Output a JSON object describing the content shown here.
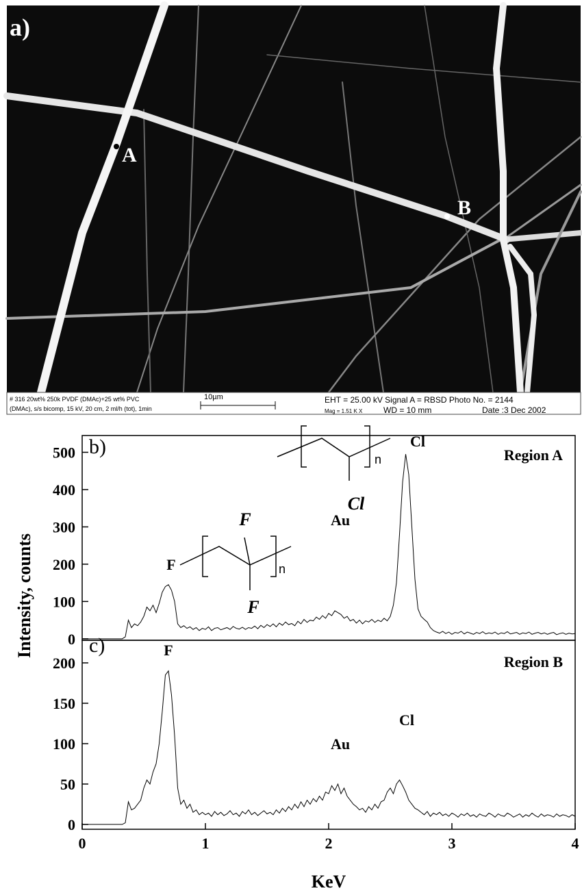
{
  "image": {
    "panel_label": "a)",
    "points": [
      "A",
      "B"
    ],
    "info": {
      "line1": "# 316 20wt% 250k PVDF (DMAc)+25 wt% PVC",
      "line2": "(DMAc), s/s bicomp, 15 kV, 20 cm, 2 ml/h (tot), 1min",
      "scale": "10µm",
      "eht": "EHT = 25.00 kV Signal A = RBSD Photo No. = 2144",
      "mag": "Mag =  1.51 K X",
      "wd": "WD =  10 mm",
      "date": "Date :3 Dec 2002"
    }
  },
  "chart_data": [
    {
      "type": "line",
      "ylabel": "Intensity, counts",
      "panel_label": "b)",
      "region_label": "Region A",
      "peak_labels": [
        "F",
        "Au",
        "Cl"
      ],
      "structure": {
        "substituents": [
          "Cl"
        ],
        "repeat": "n"
      },
      "color": "#000000",
      "xlim": [
        0,
        4
      ],
      "ylim": [
        -4,
        545
      ],
      "yticks": [
        0,
        100,
        200,
        300,
        400,
        500
      ],
      "x": [
        0,
        0.025,
        0.05,
        0.075,
        0.1,
        0.125,
        0.15,
        0.175,
        0.2,
        0.225,
        0.25,
        0.275,
        0.3,
        0.325,
        0.35,
        0.375,
        0.4,
        0.425,
        0.45,
        0.475,
        0.5,
        0.525,
        0.55,
        0.575,
        0.6,
        0.625,
        0.65,
        0.675,
        0.7,
        0.725,
        0.75,
        0.775,
        0.8,
        0.825,
        0.85,
        0.875,
        0.9,
        0.925,
        0.95,
        0.975,
        1,
        1.025,
        1.05,
        1.075,
        1.1,
        1.125,
        1.15,
        1.175,
        1.2,
        1.225,
        1.25,
        1.275,
        1.3,
        1.325,
        1.35,
        1.375,
        1.4,
        1.425,
        1.45,
        1.475,
        1.5,
        1.525,
        1.55,
        1.575,
        1.6,
        1.625,
        1.65,
        1.675,
        1.7,
        1.725,
        1.75,
        1.775,
        1.8,
        1.825,
        1.85,
        1.875,
        1.9,
        1.925,
        1.95,
        1.975,
        2,
        2.025,
        2.05,
        2.075,
        2.1,
        2.125,
        2.15,
        2.175,
        2.2,
        2.225,
        2.25,
        2.275,
        2.3,
        2.325,
        2.35,
        2.375,
        2.4,
        2.425,
        2.45,
        2.475,
        2.5,
        2.525,
        2.55,
        2.575,
        2.6,
        2.625,
        2.65,
        2.675,
        2.7,
        2.725,
        2.75,
        2.775,
        2.8,
        2.825,
        2.85,
        2.875,
        2.9,
        2.925,
        2.95,
        2.975,
        3,
        3.025,
        3.05,
        3.075,
        3.1,
        3.125,
        3.15,
        3.175,
        3.2,
        3.225,
        3.25,
        3.275,
        3.3,
        3.325,
        3.35,
        3.375,
        3.4,
        3.425,
        3.45,
        3.475,
        3.5,
        3.525,
        3.55,
        3.575,
        3.6,
        3.625,
        3.65,
        3.675,
        3.7,
        3.725,
        3.75,
        3.775,
        3.8,
        3.825,
        3.85,
        3.875,
        3.9,
        3.925,
        3.95,
        3.975,
        4
      ],
      "values": [
        0,
        0,
        0,
        0,
        0,
        0,
        0,
        0,
        0,
        0,
        0,
        0,
        0,
        0,
        5,
        50,
        30,
        40,
        35,
        45,
        60,
        85,
        75,
        90,
        70,
        95,
        125,
        140,
        145,
        130,
        100,
        40,
        30,
        35,
        28,
        32,
        25,
        30,
        22,
        28,
        25,
        32,
        22,
        28,
        30,
        24,
        27,
        30,
        25,
        33,
        28,
        26,
        31,
        25,
        30,
        28,
        34,
        27,
        36,
        30,
        38,
        33,
        40,
        32,
        42,
        36,
        45,
        38,
        41,
        35,
        47,
        40,
        52,
        44,
        50,
        48,
        58,
        52,
        62,
        55,
        68,
        62,
        75,
        70,
        65,
        55,
        60,
        48,
        52,
        42,
        50,
        40,
        48,
        45,
        52,
        44,
        50,
        46,
        55,
        48,
        60,
        90,
        150,
        280,
        420,
        495,
        440,
        300,
        160,
        80,
        60,
        52,
        45,
        30,
        22,
        18,
        15,
        20,
        14,
        18,
        12,
        17,
        15,
        20,
        13,
        18,
        15,
        12,
        17,
        14,
        19,
        13,
        16,
        14,
        18,
        12,
        16,
        14,
        19,
        13,
        15,
        17,
        12,
        16,
        14,
        18,
        12,
        15,
        17,
        13,
        16,
        12,
        15,
        17,
        11,
        14,
        16,
        12,
        15,
        13,
        14
      ]
    },
    {
      "type": "line",
      "xlabel": "KeV",
      "panel_label": "c)",
      "region_label": "Region B",
      "peak_labels": [
        "F",
        "Au",
        "Cl"
      ],
      "structure": {
        "substituents": [
          "F",
          "F"
        ],
        "repeat": "n"
      },
      "color": "#000000",
      "xlim": [
        0,
        4
      ],
      "xticks": [
        0,
        1,
        2,
        3,
        4
      ],
      "ylim": [
        -6,
        228
      ],
      "yticks": [
        0,
        50,
        100,
        150,
        200
      ],
      "x": [
        0,
        0.025,
        0.05,
        0.075,
        0.1,
        0.125,
        0.15,
        0.175,
        0.2,
        0.225,
        0.25,
        0.275,
        0.3,
        0.325,
        0.35,
        0.375,
        0.4,
        0.425,
        0.45,
        0.475,
        0.5,
        0.525,
        0.55,
        0.575,
        0.6,
        0.625,
        0.65,
        0.675,
        0.7,
        0.725,
        0.75,
        0.775,
        0.8,
        0.825,
        0.85,
        0.875,
        0.9,
        0.925,
        0.95,
        0.975,
        1,
        1.025,
        1.05,
        1.075,
        1.1,
        1.125,
        1.15,
        1.175,
        1.2,
        1.225,
        1.25,
        1.275,
        1.3,
        1.325,
        1.35,
        1.375,
        1.4,
        1.425,
        1.45,
        1.475,
        1.5,
        1.525,
        1.55,
        1.575,
        1.6,
        1.625,
        1.65,
        1.675,
        1.7,
        1.725,
        1.75,
        1.775,
        1.8,
        1.825,
        1.85,
        1.875,
        1.9,
        1.925,
        1.95,
        1.975,
        2,
        2.025,
        2.05,
        2.075,
        2.1,
        2.125,
        2.15,
        2.175,
        2.2,
        2.225,
        2.25,
        2.275,
        2.3,
        2.325,
        2.35,
        2.375,
        2.4,
        2.425,
        2.45,
        2.475,
        2.5,
        2.525,
        2.55,
        2.575,
        2.6,
        2.625,
        2.65,
        2.675,
        2.7,
        2.725,
        2.75,
        2.775,
        2.8,
        2.825,
        2.85,
        2.875,
        2.9,
        2.925,
        2.95,
        2.975,
        3,
        3.025,
        3.05,
        3.075,
        3.1,
        3.125,
        3.15,
        3.175,
        3.2,
        3.225,
        3.25,
        3.275,
        3.3,
        3.325,
        3.35,
        3.375,
        3.4,
        3.425,
        3.45,
        3.475,
        3.5,
        3.525,
        3.55,
        3.575,
        3.6,
        3.625,
        3.65,
        3.675,
        3.7,
        3.725,
        3.75,
        3.775,
        3.8,
        3.825,
        3.85,
        3.875,
        3.9,
        3.925,
        3.95,
        3.975,
        4
      ],
      "values": [
        0,
        0,
        0,
        0,
        0,
        0,
        0,
        0,
        0,
        0,
        0,
        0,
        0,
        0,
        2,
        28,
        18,
        20,
        25,
        30,
        45,
        55,
        50,
        65,
        75,
        100,
        140,
        185,
        190,
        160,
        110,
        45,
        25,
        30,
        20,
        25,
        15,
        18,
        12,
        15,
        12,
        14,
        10,
        16,
        12,
        15,
        11,
        13,
        17,
        12,
        14,
        10,
        16,
        13,
        18,
        12,
        15,
        11,
        14,
        17,
        13,
        15,
        12,
        18,
        14,
        20,
        16,
        22,
        18,
        25,
        20,
        28,
        22,
        30,
        25,
        32,
        28,
        35,
        30,
        40,
        38,
        48,
        42,
        50,
        38,
        45,
        35,
        30,
        25,
        22,
        18,
        20,
        15,
        22,
        18,
        25,
        20,
        28,
        30,
        40,
        45,
        38,
        50,
        55,
        48,
        40,
        30,
        25,
        20,
        18,
        15,
        12,
        16,
        10,
        14,
        12,
        15,
        11,
        13,
        10,
        14,
        12,
        9,
        13,
        11,
        14,
        10,
        12,
        9,
        13,
        11,
        10,
        14,
        12,
        9,
        13,
        11,
        10,
        14,
        12,
        9,
        11,
        13,
        9,
        12,
        10,
        14,
        11,
        9,
        13,
        10,
        12,
        11,
        9,
        13,
        10,
        12,
        11,
        9,
        12,
        10
      ]
    }
  ]
}
